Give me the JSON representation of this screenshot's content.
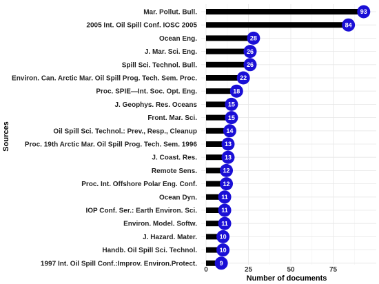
{
  "chart_data": {
    "type": "bar",
    "orientation": "horizontal",
    "xlabel": "Number of documents",
    "ylabel": "Sources",
    "xlim": [
      0,
      97
    ],
    "xticks": [
      0,
      25,
      50,
      75
    ],
    "grid": true,
    "colors": {
      "bar": "#000000",
      "dot": "#1a0fd6",
      "label": "#ffffff"
    },
    "categories": [
      "Mar. Pollut. Bull.",
      "2005 Int. Oil Spill Conf. IOSC 2005",
      "Ocean Eng.",
      "J. Mar. Sci. Eng.",
      "Spill Sci. Technol. Bull.",
      "Environ. Can. Arctic Mar. Oil Spill Prog. Tech. Sem. Proc.",
      "Proc. SPIE—Int. Soc. Opt. Eng.",
      "J. Geophys. Res. Oceans",
      "Front. Mar. Sci.",
      "Oil Spill Sci. Technol.: Prev., Resp., Cleanup",
      "Proc. 19th Arctic Mar. Oil Spill Prog. Tech. Sem. 1996",
      "J. Coast. Res.",
      "Remote Sens.",
      "Proc. Int. Offshore Polar Eng. Conf.",
      "Ocean Dyn.",
      "IOP Conf. Ser.: Earth Environ. Sci.",
      "Environ. Model. Softw.",
      "J. Hazard. Mater.",
      "Handb. Oil Spill Sci. Technol.",
      "1997 Int. Oil Spill Conf.:Improv. Environ.Protect."
    ],
    "values": [
      93,
      84,
      28,
      26,
      26,
      22,
      18,
      15,
      15,
      14,
      13,
      13,
      12,
      12,
      11,
      11,
      11,
      10,
      10,
      9
    ]
  }
}
